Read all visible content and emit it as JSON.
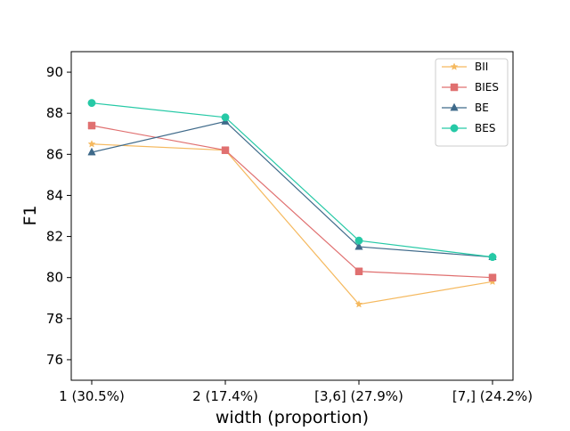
{
  "chart_data": {
    "type": "line",
    "title": "",
    "xlabel": "width (proportion)",
    "ylabel": "F1",
    "categories": [
      "1 (30.5%)",
      "2 (17.4%)",
      "[3,6] (27.9%)",
      "[7,] (24.2%)"
    ],
    "ylim": [
      75,
      91
    ],
    "yticks": [
      76,
      78,
      80,
      82,
      84,
      86,
      88,
      90
    ],
    "grid": false,
    "legend_position": "top-right",
    "series": [
      {
        "name": "BII",
        "marker": "star",
        "color": "#f5b95f",
        "values": [
          86.5,
          86.2,
          78.7,
          79.8
        ]
      },
      {
        "name": "BIES",
        "marker": "square",
        "color": "#e07070",
        "values": [
          87.4,
          86.2,
          80.3,
          80.0
        ]
      },
      {
        "name": "BE",
        "marker": "triangle",
        "color": "#3f6a8a",
        "values": [
          86.1,
          87.6,
          81.5,
          81.0
        ]
      },
      {
        "name": "BES",
        "marker": "circle",
        "color": "#26c9a6",
        "values": [
          88.5,
          87.8,
          81.8,
          81.0
        ]
      }
    ]
  }
}
